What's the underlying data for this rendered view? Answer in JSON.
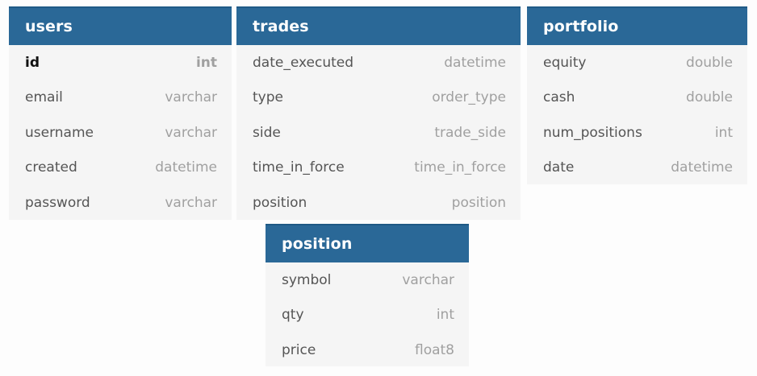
{
  "tables": {
    "users": {
      "title": "users",
      "fields": [
        {
          "name": "id",
          "type": "int"
        },
        {
          "name": "email",
          "type": "varchar"
        },
        {
          "name": "username",
          "type": "varchar"
        },
        {
          "name": "created",
          "type": "datetime"
        },
        {
          "name": "password",
          "type": "varchar"
        }
      ]
    },
    "trades": {
      "title": "trades",
      "fields": [
        {
          "name": "date_executed",
          "type": "datetime"
        },
        {
          "name": "type",
          "type": "order_type"
        },
        {
          "name": "side",
          "type": "trade_side"
        },
        {
          "name": "time_in_force",
          "type": "time_in_force"
        },
        {
          "name": "position",
          "type": "position"
        }
      ]
    },
    "portfolio": {
      "title": "portfolio",
      "fields": [
        {
          "name": "equity",
          "type": "double"
        },
        {
          "name": "cash",
          "type": "double"
        },
        {
          "name": "num_positions",
          "type": "int"
        },
        {
          "name": "date",
          "type": "datetime"
        }
      ]
    },
    "position": {
      "title": "position",
      "fields": [
        {
          "name": "symbol",
          "type": "varchar"
        },
        {
          "name": "qty",
          "type": "int"
        },
        {
          "name": "price",
          "type": "float8"
        }
      ]
    }
  },
  "colors": {
    "header_bg": "#2a6897",
    "body_bg": "#f5f5f5",
    "field_name": "#555555",
    "field_type": "#a0a0a0"
  }
}
